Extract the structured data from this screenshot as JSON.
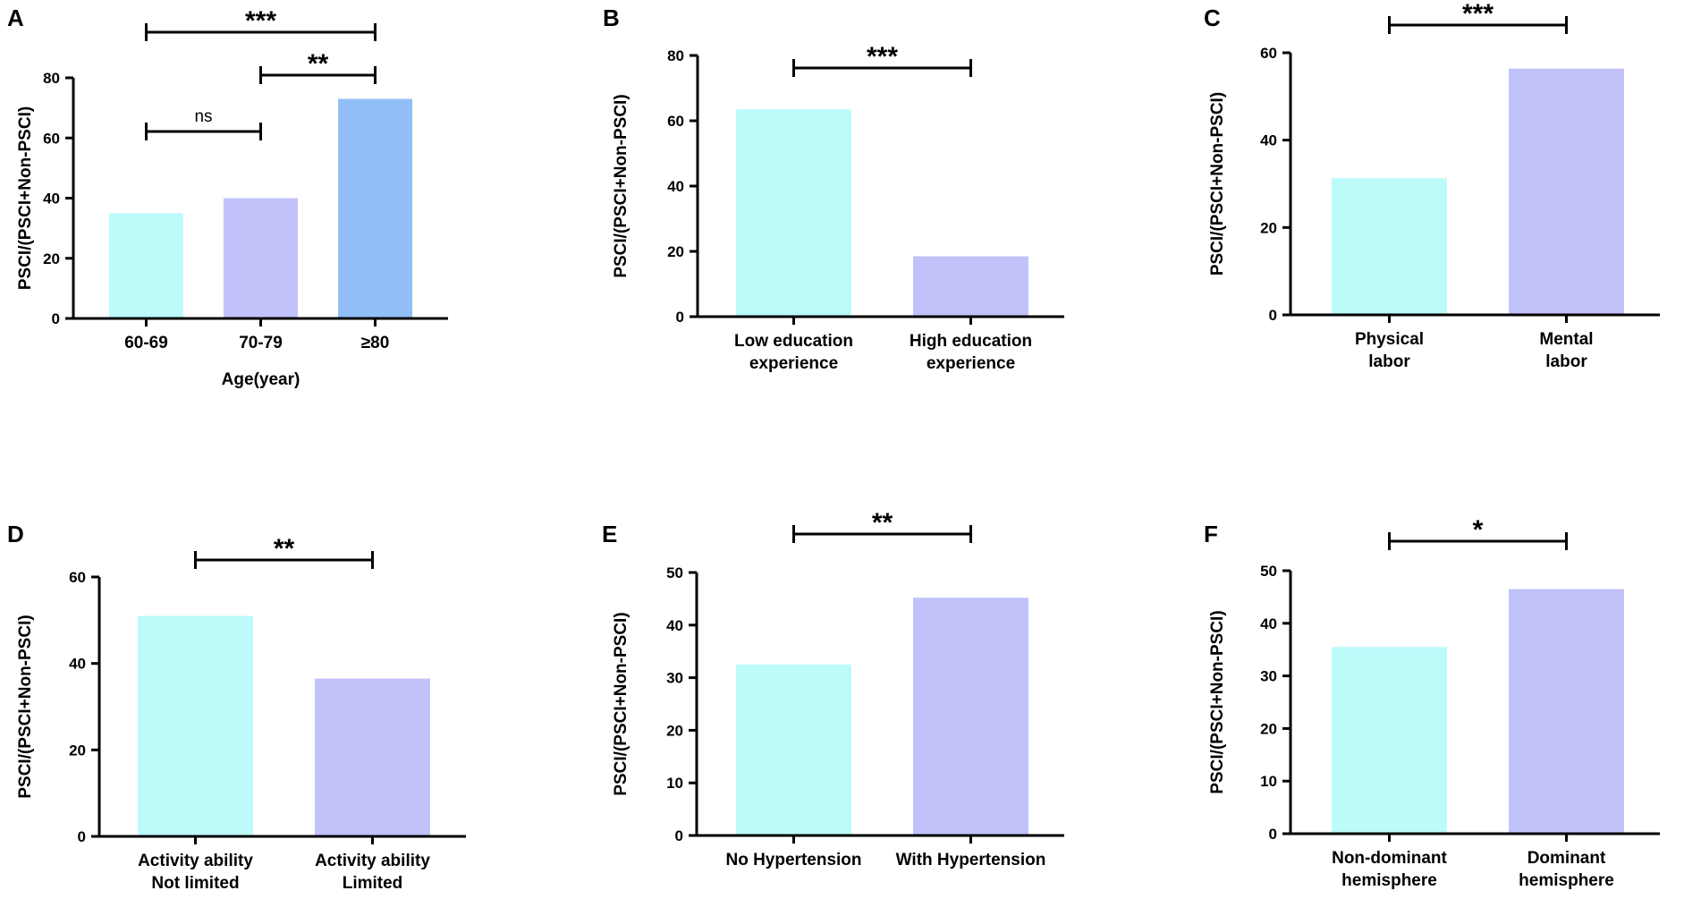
{
  "colors": {
    "cyan": "#bdfbfb",
    "lavender": "#c2c2fb",
    "blue": "#92bef8",
    "axis": "#000000"
  },
  "chart_data": [
    {
      "panel": "A",
      "type": "bar",
      "ylabel": "PSCI/(PSCI+Non-PSCI)",
      "xlabel": "Age(year)",
      "ylim": [
        0,
        80
      ],
      "yticks": [
        0,
        20,
        40,
        60,
        80
      ],
      "categories": [
        [
          "60-69"
        ],
        [
          "70-79"
        ],
        [
          "≥80"
        ]
      ],
      "values": [
        35,
        40,
        73
      ],
      "bar_colors": [
        "cyan",
        "lavender",
        "blue"
      ],
      "significance": [
        {
          "from": 0,
          "to": 1,
          "label": "ns"
        },
        {
          "from": 1,
          "to": 2,
          "label": "**"
        },
        {
          "from": 0,
          "to": 2,
          "label": "***"
        }
      ]
    },
    {
      "panel": "B",
      "type": "bar",
      "ylabel": "PSCI/(PSCI+Non-PSCI)",
      "xlabel": "",
      "ylim": [
        0,
        80
      ],
      "yticks": [
        0,
        20,
        40,
        60,
        80
      ],
      "categories": [
        [
          "Low education",
          "experience"
        ],
        [
          "High education",
          "experience"
        ]
      ],
      "values": [
        63.5,
        18.5
      ],
      "bar_colors": [
        "cyan",
        "lavender"
      ],
      "significance": [
        {
          "from": 0,
          "to": 1,
          "label": "***"
        }
      ]
    },
    {
      "panel": "C",
      "type": "bar",
      "ylabel": "PSCI/(PSCI+Non-PSCI)",
      "xlabel": "",
      "ylim": [
        0,
        60
      ],
      "yticks": [
        0,
        20,
        40,
        60
      ],
      "categories": [
        [
          "Physical",
          "labor"
        ],
        [
          "Mental",
          "labor"
        ]
      ],
      "values": [
        31.3,
        56.4
      ],
      "bar_colors": [
        "cyan",
        "lavender"
      ],
      "significance": [
        {
          "from": 0,
          "to": 1,
          "label": "***"
        }
      ]
    },
    {
      "panel": "D",
      "type": "bar",
      "ylabel": "PSCI/(PSCI+Non-PSCI)",
      "xlabel": "",
      "ylim": [
        0,
        60
      ],
      "yticks": [
        0,
        20,
        40,
        60
      ],
      "categories": [
        [
          "Activity ability",
          "Not limited"
        ],
        [
          "Activity ability",
          "Limited"
        ]
      ],
      "values": [
        51,
        36.5
      ],
      "bar_colors": [
        "cyan",
        "lavender"
      ],
      "significance": [
        {
          "from": 0,
          "to": 1,
          "label": "**"
        }
      ]
    },
    {
      "panel": "E",
      "type": "bar",
      "ylabel": "PSCI/(PSCI+Non-PSCI)",
      "xlabel": "",
      "ylim": [
        0,
        50
      ],
      "yticks": [
        0,
        10,
        20,
        30,
        40,
        50
      ],
      "categories": [
        [
          "No Hypertension"
        ],
        [
          "With Hypertension"
        ]
      ],
      "values": [
        32.5,
        45.2
      ],
      "bar_colors": [
        "cyan",
        "lavender"
      ],
      "significance": [
        {
          "from": 0,
          "to": 1,
          "label": "**"
        }
      ]
    },
    {
      "panel": "F",
      "type": "bar",
      "ylabel": "PSCI/(PSCI+Non-PSCI)",
      "xlabel": "",
      "ylim": [
        0,
        50
      ],
      "yticks": [
        0,
        10,
        20,
        30,
        40,
        50
      ],
      "categories": [
        [
          "Non-dominant",
          "hemisphere"
        ],
        [
          "Dominant",
          "hemisphere"
        ]
      ],
      "values": [
        35.5,
        46.5
      ],
      "bar_colors": [
        "cyan",
        "lavender"
      ],
      "significance": [
        {
          "from": 0,
          "to": 1,
          "label": "*"
        }
      ]
    }
  ]
}
